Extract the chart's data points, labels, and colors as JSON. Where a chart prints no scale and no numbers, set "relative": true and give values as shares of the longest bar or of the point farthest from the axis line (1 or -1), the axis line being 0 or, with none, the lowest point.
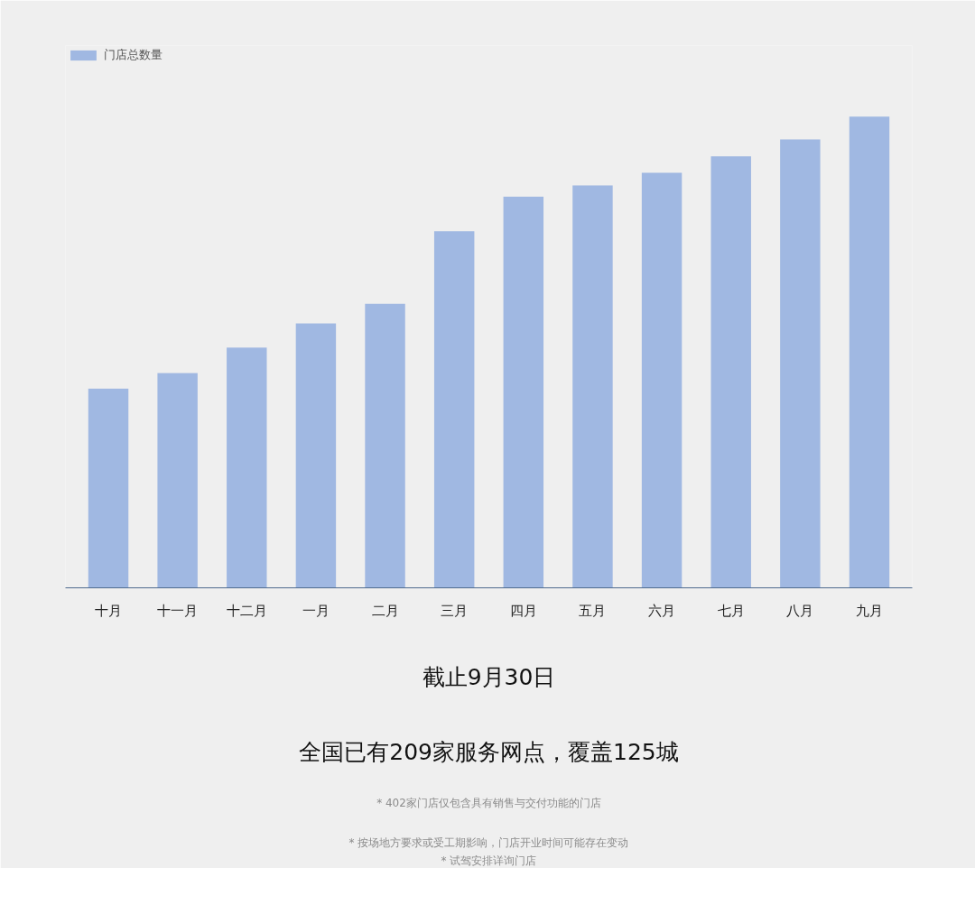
{
  "chart_data": {
    "type": "bar",
    "relative": true,
    "categories": [
      "十月",
      "十一月",
      "十二月",
      "一月",
      "二月",
      "三月",
      "四月",
      "五月",
      "六月",
      "七月",
      "八月",
      "九月"
    ],
    "series": [
      {
        "name": "门店总数量",
        "color": "#a0b8e2",
        "values": [
          0.423,
          0.456,
          0.51,
          0.561,
          0.603,
          0.757,
          0.83,
          0.854,
          0.881,
          0.916,
          0.952,
          1
        ]
      }
    ],
    "legend": "top left",
    "grid": false,
    "annotations": [
      "截止9月30日",
      "全国已有209家服务网点，覆盖125城",
      "* 402家门店仅包含具有销售与交付功能的门店",
      "* 按场地方要求或受工期影响，门店开业时间可能存在变动",
      "* 试驾安排详询门店"
    ]
  }
}
